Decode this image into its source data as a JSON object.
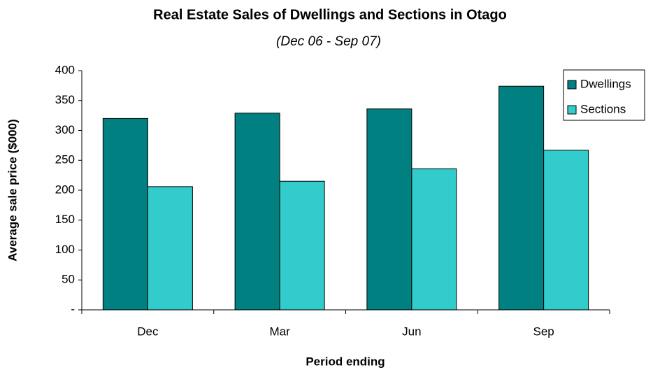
{
  "chart_data": {
    "type": "bar",
    "title": "Real Estate Sales of Dwellings and Sections in Otago",
    "subtitle": "(Dec 06 - Sep 07)",
    "x_label": "Period ending",
    "y_label": "Average sale price ($000)",
    "categories": [
      "Dec",
      "Mar",
      "Jun",
      "Sep"
    ],
    "series": [
      {
        "name": "Dwellings",
        "color": "#008080",
        "values": [
          320,
          329,
          336,
          374
        ]
      },
      {
        "name": "Sections",
        "color": "#33CCCC",
        "values": [
          206,
          215,
          236,
          267
        ]
      }
    ],
    "ylim": [
      0,
      400
    ],
    "yticks": [
      {
        "value": 0,
        "label": "-"
      },
      50,
      100,
      150,
      200,
      250,
      300,
      350,
      400
    ],
    "grid": false,
    "legend": "top-right"
  }
}
